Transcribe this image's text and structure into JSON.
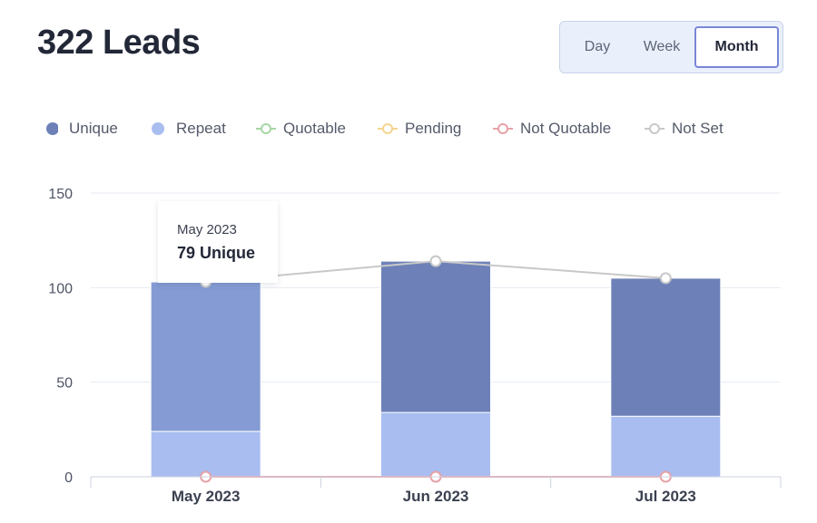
{
  "header": {
    "title": "322 Leads"
  },
  "period": {
    "options": [
      "Day",
      "Week",
      "Month"
    ],
    "selected": "Month"
  },
  "legend": [
    {
      "label": "Unique",
      "style": "dot",
      "color": "#6d81b8"
    },
    {
      "label": "Repeat",
      "style": "dot",
      "color": "#a9bdf0"
    },
    {
      "label": "Quotable",
      "style": "line-marker",
      "color": "#a6d6a4"
    },
    {
      "label": "Pending",
      "style": "line-marker",
      "color": "#f3d58e"
    },
    {
      "label": "Not Quotable",
      "style": "line-marker",
      "color": "#e7a2a8"
    },
    {
      "label": "Not Set",
      "style": "line-marker",
      "color": "#c8c8c8"
    }
  ],
  "tooltip": {
    "date": "May 2023",
    "value": "79 Unique"
  },
  "chart_data": {
    "type": "bar",
    "stacked": true,
    "categories": [
      "May 2023",
      "Jun 2023",
      "Jul 2023"
    ],
    "series": [
      {
        "name": "Repeat",
        "type": "bar",
        "color": "#a9bdf0",
        "values": [
          24,
          34,
          32
        ]
      },
      {
        "name": "Unique",
        "type": "bar",
        "color": "#6d81b8",
        "highlight_color": "#849bd3",
        "values": [
          79,
          80,
          73
        ]
      },
      {
        "name": "Not Quotable",
        "type": "line",
        "color": "#e7a2a8",
        "values": [
          0,
          0,
          0
        ]
      },
      {
        "name": "Not Set",
        "type": "line",
        "color": "#c8c8c8",
        "values": [
          103,
          114,
          105
        ]
      }
    ],
    "y_ticks": [
      0,
      50,
      100,
      150
    ],
    "ylim": [
      0,
      150
    ],
    "highlighted_category": "May 2023",
    "grid": true,
    "legend_position": "top-left"
  }
}
